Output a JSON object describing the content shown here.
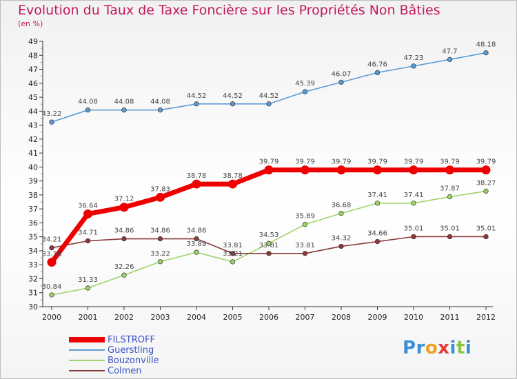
{
  "title": "Evolution du Taux de Taxe Foncière sur les Propriétés Non Bâties",
  "subtitle": "(en %)",
  "logo": {
    "text": "Proxiti",
    "letters": [
      {
        "ch": "P",
        "color": "#3b8fd6"
      },
      {
        "ch": "r",
        "color": "#3b8fd6"
      },
      {
        "ch": "o",
        "color": "#f0a020"
      },
      {
        "ch": "x",
        "color": "#e63b3b"
      },
      {
        "ch": "i",
        "color": "#3b8fd6"
      },
      {
        "ch": "t",
        "color": "#8cc63f"
      },
      {
        "ch": "i",
        "color": "#3b8fd6"
      }
    ]
  },
  "chart_data": {
    "type": "line",
    "x": [
      "2000",
      "2001",
      "2002",
      "2003",
      "2004",
      "2005",
      "2006",
      "2007",
      "2008",
      "2009",
      "2010",
      "2011",
      "2012"
    ],
    "ylim": [
      30,
      49
    ],
    "yticks": [
      "30",
      "31",
      "32",
      "33",
      "34",
      "35",
      "36",
      "37",
      "38",
      "39",
      "40",
      "41",
      "42",
      "43",
      "44",
      "45",
      "46",
      "47",
      "48",
      "49"
    ],
    "grid": false,
    "legend_position": "bottom-left",
    "series": [
      {
        "name": "FILSTROFF",
        "color": "#ee0000",
        "values": [
          33.18,
          36.64,
          37.12,
          37.83,
          38.78,
          38.78,
          39.79,
          39.79,
          39.79,
          39.79,
          39.79,
          39.79,
          39.79
        ],
        "labels": [
          "33.18",
          "36.64",
          "37.12",
          "37.83",
          "38.78",
          "38.78",
          "39.79",
          "39.79",
          "39.79",
          "39.79",
          "39.79",
          "39.79",
          "39.79"
        ]
      },
      {
        "name": "Guerstling",
        "color": "#5b9bd5",
        "values": [
          43.22,
          44.08,
          44.08,
          44.08,
          44.52,
          44.52,
          44.52,
          45.39,
          46.07,
          46.76,
          47.23,
          47.7,
          48.18
        ],
        "labels": [
          "43.22",
          "44.08",
          "44.08",
          "44.08",
          "44.52",
          "44.52",
          "44.52",
          "45.39",
          "46.07",
          "46.76",
          "47.23",
          "47.7",
          "48.18"
        ]
      },
      {
        "name": "Bouzonville",
        "color": "#9ed36a",
        "values": [
          30.84,
          31.33,
          32.26,
          33.22,
          33.89,
          33.21,
          34.53,
          35.89,
          36.68,
          37.41,
          37.41,
          37.87,
          38.27
        ],
        "labels": [
          "30.84",
          "31.33",
          "32.26",
          "33.22",
          "33.89",
          "33.21",
          "34.53",
          "35.89",
          "36.68",
          "37.41",
          "37.41",
          "37.87",
          "38.27"
        ]
      },
      {
        "name": "Colmen",
        "color": "#8b3a3a",
        "values": [
          34.21,
          34.71,
          34.86,
          34.86,
          34.86,
          33.81,
          33.81,
          33.81,
          34.32,
          34.66,
          35.01,
          35.01,
          35.01
        ],
        "labels": [
          "34.21",
          "34.71",
          "34.86",
          "34.86",
          "34.86",
          "33.81",
          "33.81",
          "33.81",
          "34.32",
          "34.66",
          "35.01",
          "35.01",
          "35.01"
        ]
      }
    ]
  }
}
